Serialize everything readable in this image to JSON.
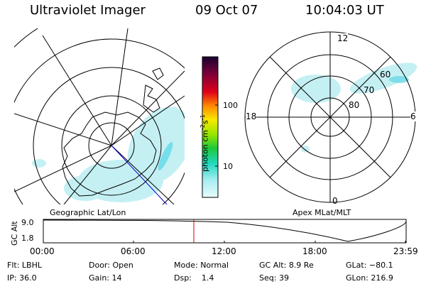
{
  "header": {
    "title": "Ultraviolet Imager",
    "date": "09 Oct 07",
    "time": "10:04:03 UT"
  },
  "left_panel": {
    "caption": "Geographic Lat/Lon"
  },
  "right_panel": {
    "caption": "Apex MLat/MLT",
    "mlt_labels": {
      "top": "12",
      "bottom": "0",
      "left": "18",
      "right": "6"
    },
    "mlat_labels": [
      "60",
      "70",
      "80"
    ]
  },
  "colorbar": {
    "unit": "photon cm",
    "unit_sup1": "-2",
    "unit_mid": "s",
    "unit_sup2": "-1",
    "ticks": [
      "100",
      "10"
    ]
  },
  "altitude_plot": {
    "ylabel": "GC Alt",
    "ytick_top": "9.0",
    "ytick_bottom": "1.8",
    "xticks": [
      "00:00",
      "06:00",
      "12:00",
      "18:00",
      "23:59"
    ],
    "marker_color": "#e00000"
  },
  "status": {
    "filter_label": "Flt:",
    "filter_value": "LBHL",
    "ip_label": "IP:",
    "ip_value": "36.0",
    "door_label": "Door:",
    "door_value": "Open",
    "gain_label": "Gain:",
    "gain_value": "14",
    "mode_label": "Mode:",
    "mode_value": "Normal",
    "dsp_label": "Dsp:",
    "dsp_value": "1.4",
    "gcalt_label": "GC Alt:",
    "gcalt_value": "8.9 Re",
    "seq_label": "Seq:",
    "seq_value": "39",
    "glat_label": "GLat:",
    "glat_value": "−80.1",
    "glon_label": "GLon:",
    "glon_value": "216.9"
  }
}
